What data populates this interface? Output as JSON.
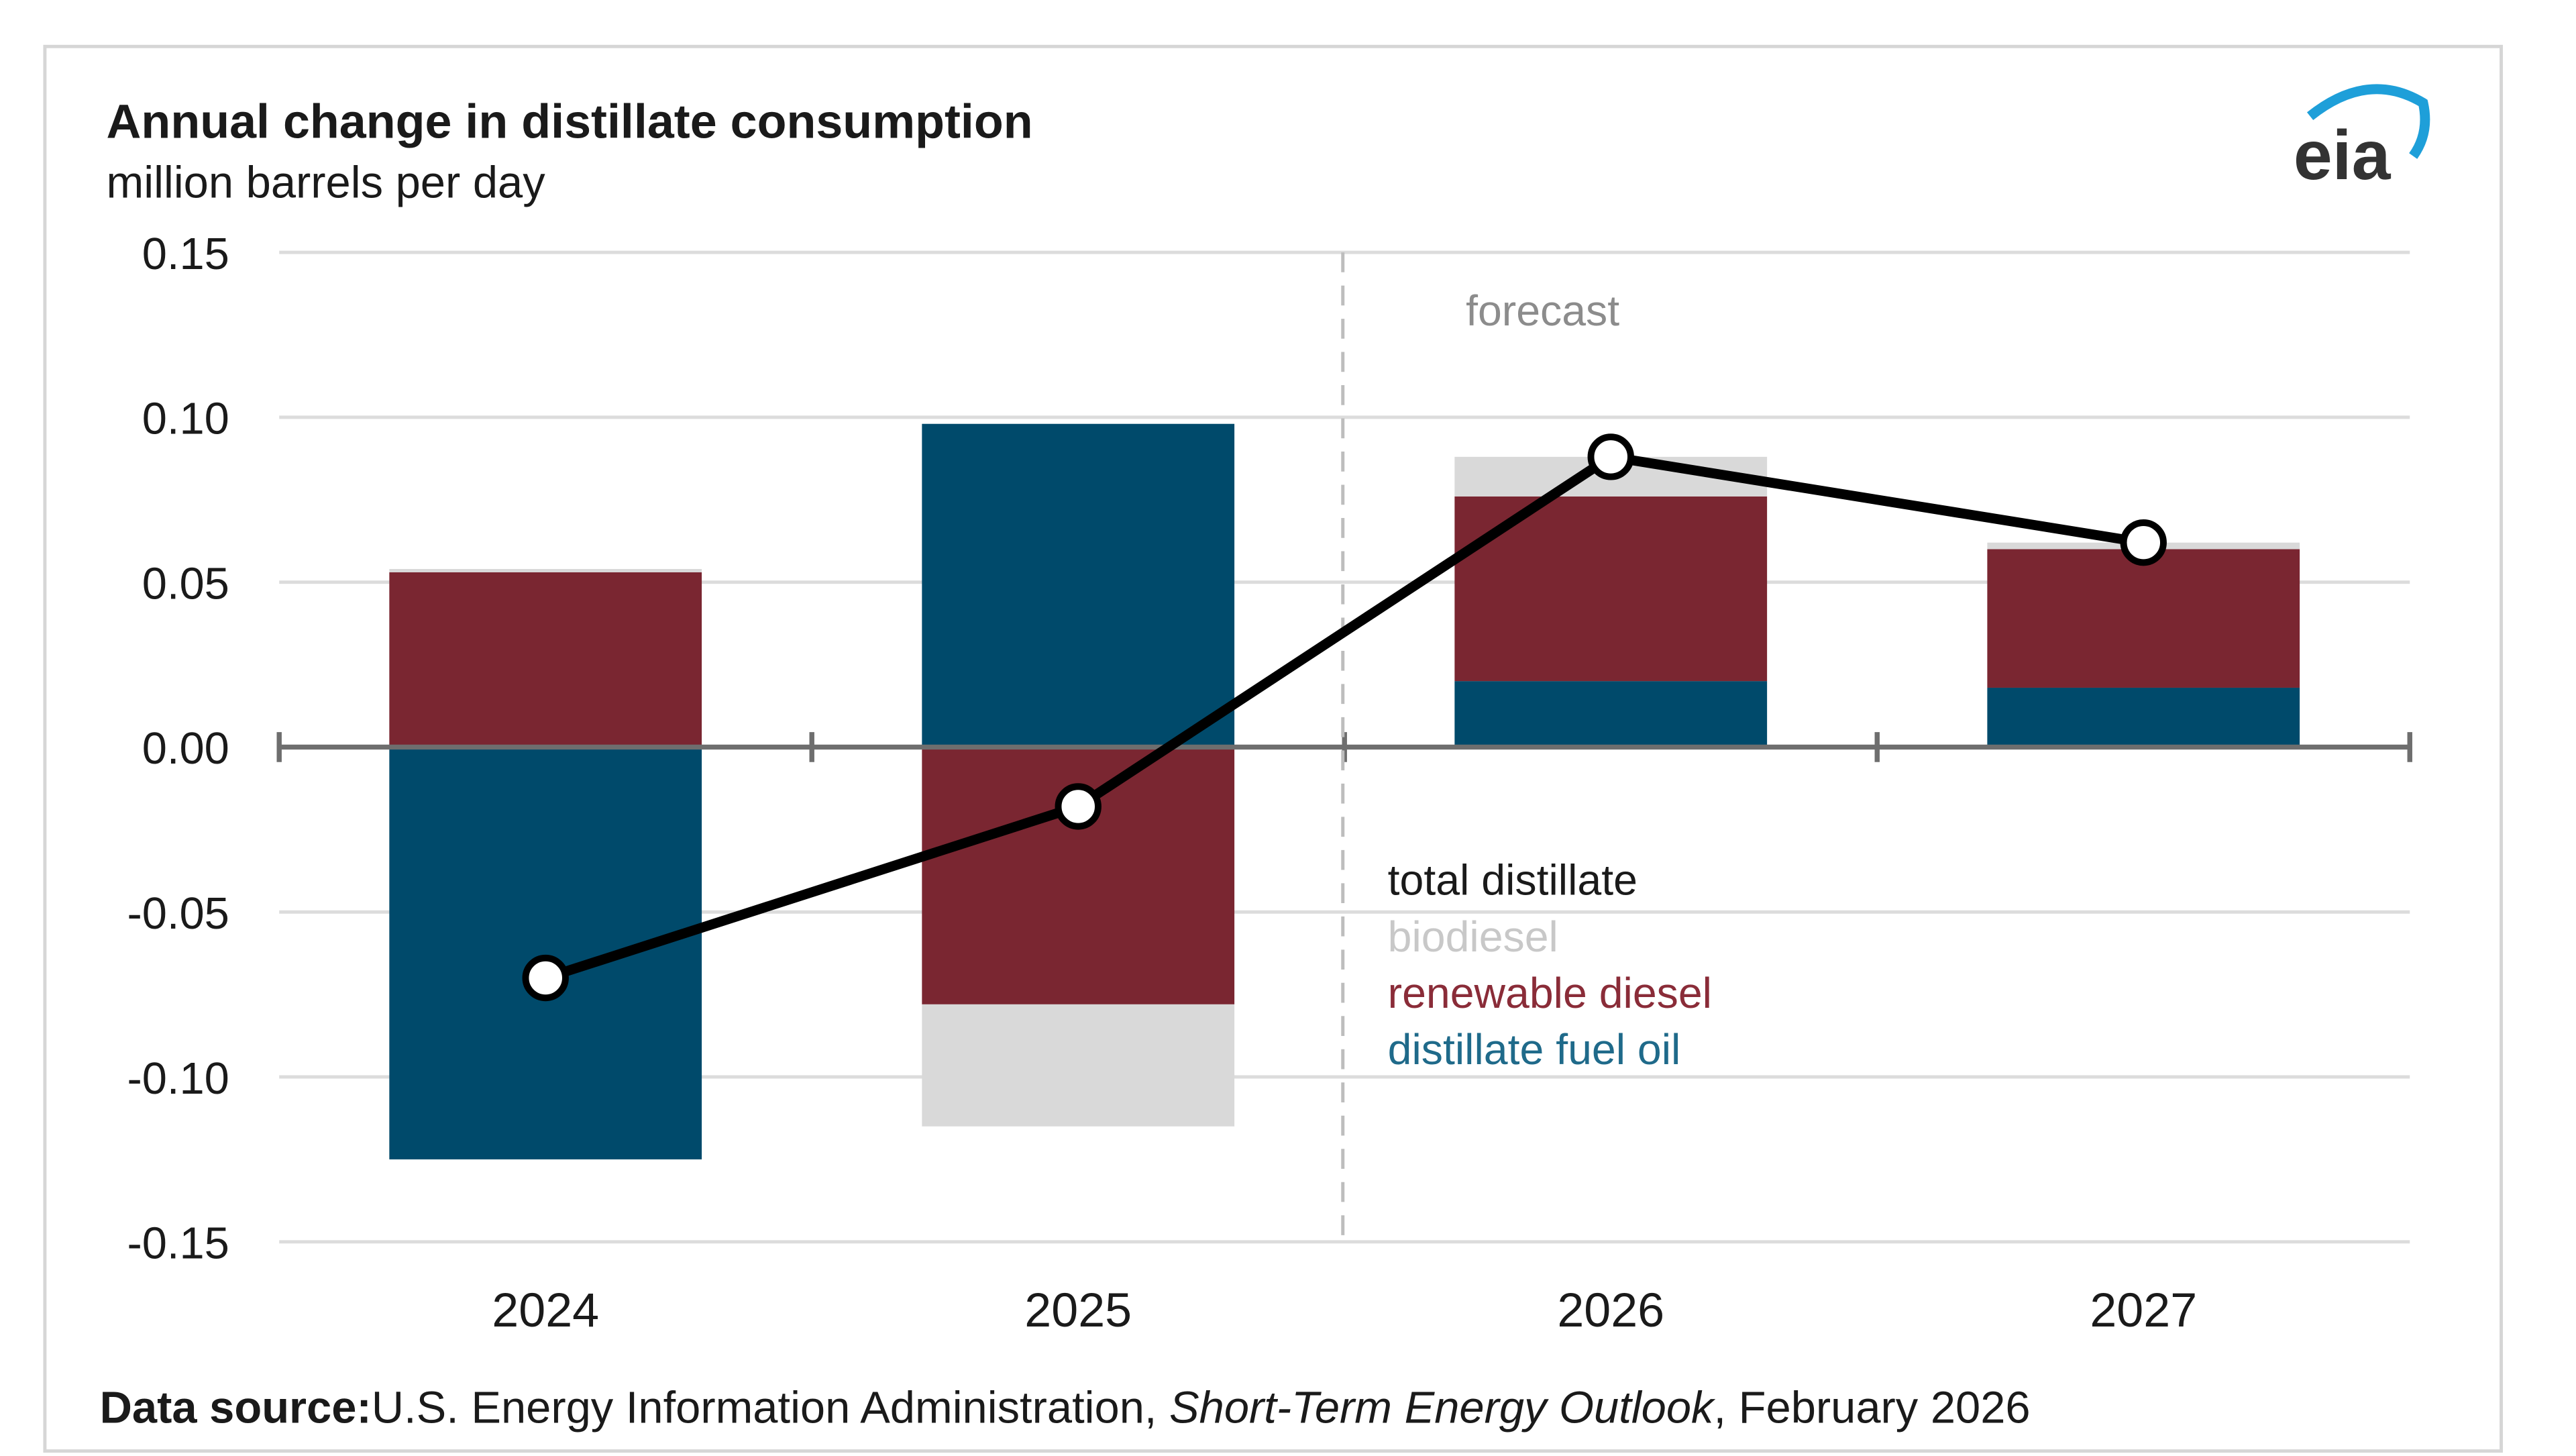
{
  "chart_data": {
    "type": "bar",
    "subtype": "stacked bar with line overlay",
    "title": "Annual change in distillate consumption",
    "ylabel": "million barrels per day",
    "categories": [
      "2024",
      "2025",
      "2026",
      "2027"
    ],
    "ylim": [
      -0.15,
      0.15
    ],
    "yticks": [
      "0.15",
      "0.10",
      "0.05",
      "0.00",
      "-0.05",
      "-0.10",
      "-0.15"
    ],
    "ytick_values": [
      0.15,
      0.1,
      0.05,
      0.0,
      -0.05,
      -0.1,
      -0.15
    ],
    "grid": true,
    "forecast_label": "forecast",
    "forecast_starts_after": "2025",
    "series": [
      {
        "name": "distillate fuel oil",
        "color": "#004a6b",
        "values": [
          -0.125,
          0.098,
          0.02,
          0.018
        ]
      },
      {
        "name": "renewable diesel",
        "color": "#7a2631",
        "values": [
          0.053,
          -0.078,
          0.056,
          0.042
        ]
      },
      {
        "name": "biodiesel",
        "color": "#d9d9d9",
        "values": [
          0.001,
          -0.037,
          0.012,
          0.002
        ]
      }
    ],
    "line": {
      "name": "total distillate",
      "color": "#000000",
      "values": [
        -0.07,
        -0.018,
        0.088,
        0.062
      ]
    },
    "legend": [
      "total distillate",
      "biodiesel",
      "renewable diesel",
      "distillate fuel oil"
    ],
    "legend_colors": [
      "#1a1a1a",
      "#c8c8c8",
      "#8a2c38",
      "#1f6a8a"
    ],
    "legend_placement": "center-right"
  },
  "source": {
    "label": "Data source:",
    "text1": "U.S. Energy Information Administration, ",
    "italic": "Short-Term Energy Outlook",
    "text2": ", February 2026"
  },
  "logo": {
    "text": "eia"
  }
}
